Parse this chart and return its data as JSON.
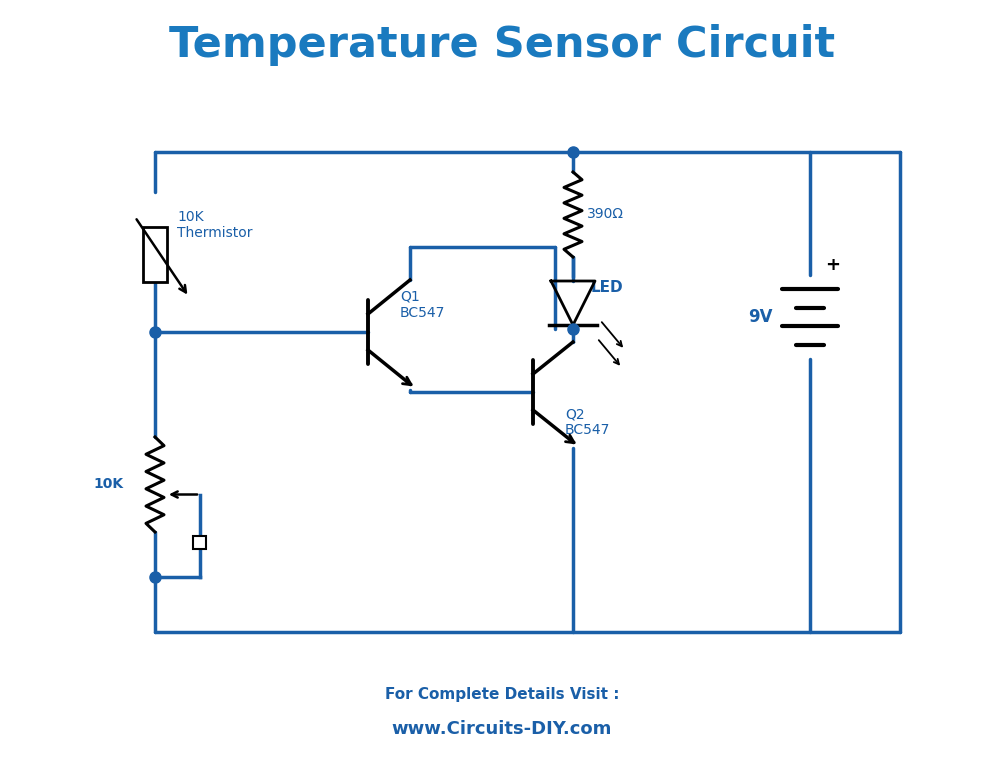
{
  "title": "Temperature Sensor Circuit",
  "subtitle1": "For Complete Details Visit :",
  "subtitle2": "www.Circuits-DIY.com",
  "circuit_color": "#1a5fa8",
  "black_color": "#000000",
  "bg_color": "#ffffff",
  "title_color": "#1a7abf",
  "subtitle1_color": "#1a5fa8",
  "subtitle2_color": "#1a5fa8",
  "component_labels": {
    "thermistor": "10K\nThermistor",
    "resistor390": "390Ω",
    "led": "LED",
    "q1": "Q1\nBC547",
    "q2": "Q2\nBC547",
    "pot": "10K",
    "battery": "9V"
  },
  "fig_width": 10.03,
  "fig_height": 7.67
}
